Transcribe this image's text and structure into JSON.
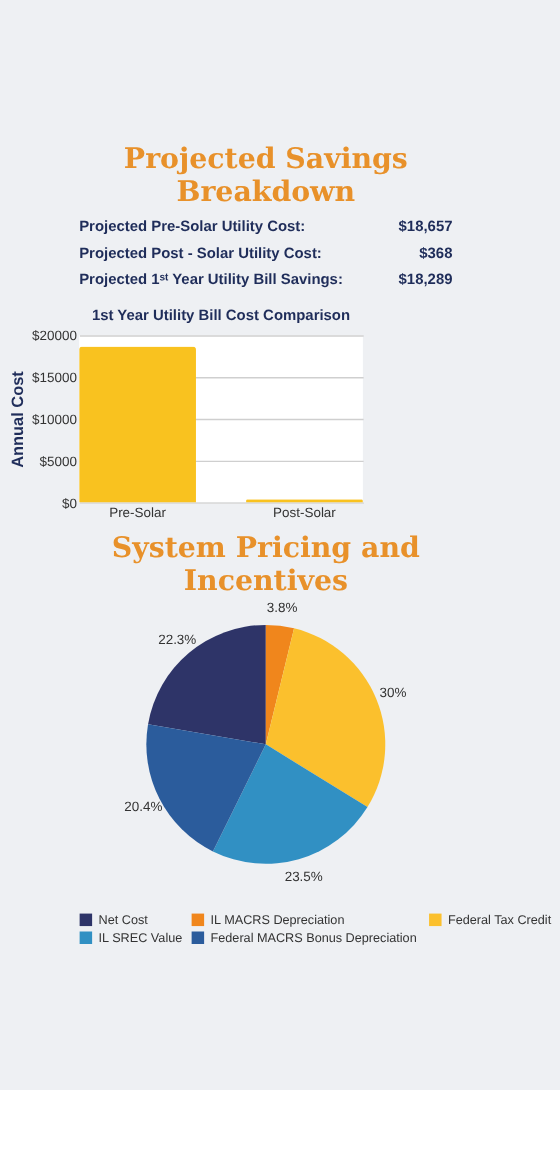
{
  "chart_data": [
    {
      "type": "other",
      "title": "Projected Savings Breakdown",
      "annotations": [
        "Projected Pre-Solar Utility Cost: $18,657",
        "Projected Post - Solar Utility Cost: $368",
        "Projected 1ˢᵗ Year Utility Bill Savings: $18,289"
      ]
    },
    {
      "type": "bar",
      "title": "1st Year Utility Bill Cost Comparison",
      "ylabel": "Annual Cost",
      "categories": [
        "Pre-Solar",
        "Post-Solar"
      ],
      "values": [
        18657,
        368
      ],
      "color": "#f9c21f",
      "ylim": [
        0,
        20000
      ],
      "yticks": [
        {
          "value": 0,
          "label": "$0"
        },
        {
          "value": 5000,
          "label": "$5000"
        },
        {
          "value": 10000,
          "label": "$10000"
        },
        {
          "value": 15000,
          "label": "$15000"
        },
        {
          "value": 20000,
          "label": "$20000"
        }
      ],
      "grid": "y"
    },
    {
      "type": "pie",
      "title": "System Pricing and Incentives",
      "categories": [
        "Net Cost",
        "IL MACRS Depreciation",
        "Federal Tax Credit",
        "IL SREC Value",
        "Federal MACRS  Bonus Depreciation"
      ],
      "values": [
        22.3,
        3.8,
        30,
        23.5,
        20.4
      ],
      "colors": [
        "#2e3468",
        "#f0861c",
        "#fbc02d",
        "#3190c3",
        "#2b5c9c"
      ],
      "value_labels": [
        "22.3%",
        "3.8%",
        "30%",
        "23.5%",
        "20.4%"
      ],
      "legend": "bottom"
    }
  ]
}
